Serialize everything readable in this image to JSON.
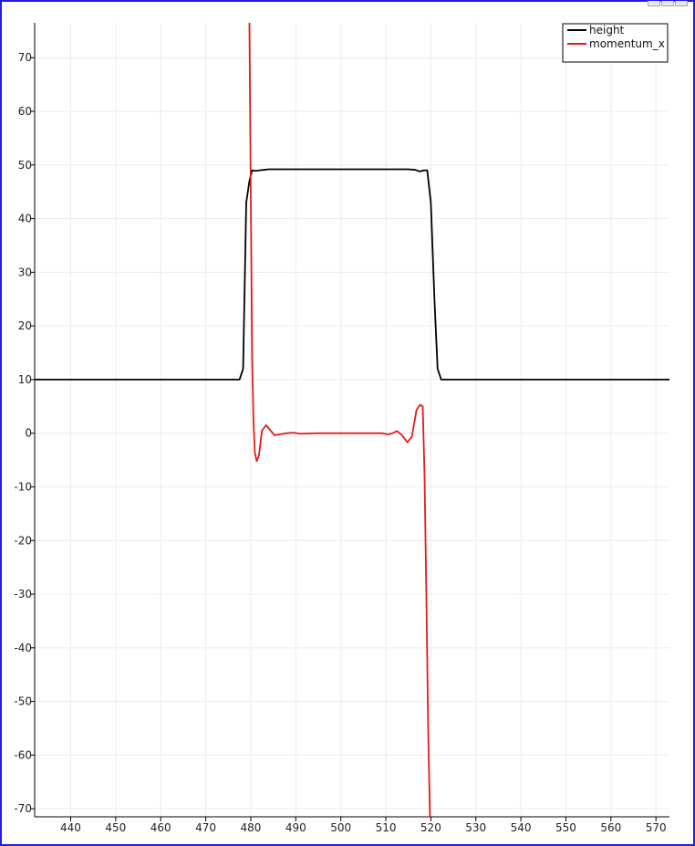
{
  "window": {
    "controls": [
      "minimize",
      "maximize",
      "close"
    ]
  },
  "chart_data": {
    "type": "line",
    "title": "",
    "xlabel": "",
    "ylabel": "",
    "xlim": [
      432,
      573
    ],
    "ylim": [
      -71.5,
      76.5
    ],
    "x_ticks": [
      440,
      450,
      460,
      470,
      480,
      490,
      500,
      510,
      520,
      530,
      540,
      550,
      560,
      570
    ],
    "y_ticks": [
      -70,
      -60,
      -50,
      -40,
      -30,
      -20,
      -10,
      0,
      10,
      20,
      30,
      40,
      50,
      60,
      70
    ],
    "grid": true,
    "legend": {
      "placement": "top-right"
    },
    "series": [
      {
        "name": "height",
        "color": "#000000",
        "x": [
          432,
          470,
          477.5,
          478.3,
          479,
          479.7,
          480.3,
          481,
          482,
          483,
          484,
          490,
          500,
          510,
          515,
          516.5,
          517.5,
          518.5,
          519.2,
          520,
          520.8,
          521.5,
          522.3,
          530,
          573
        ],
        "y": [
          10,
          10,
          10,
          12,
          43,
          47,
          49,
          48.9,
          49,
          49.1,
          49.2,
          49.2,
          49.2,
          49.2,
          49.2,
          49.1,
          48.8,
          49,
          49,
          43,
          25,
          12,
          10,
          10,
          10
        ]
      },
      {
        "name": "momentum_x",
        "color": "#e41a1c",
        "x": [
          479.7,
          480,
          480.3,
          480.6,
          480.9,
          481.3,
          481.8,
          482.5,
          483.4,
          484.4,
          485.3,
          486.5,
          488,
          489.5,
          491,
          495,
          500,
          505,
          509,
          510.5,
          511.5,
          512.5,
          513.5,
          514.8,
          515.8,
          516.8,
          517.6,
          518.2,
          518.6,
          519,
          519.4,
          519.8
        ],
        "y": [
          76.5,
          45,
          14,
          2.5,
          -3.5,
          -5.2,
          -4.2,
          0.5,
          1.5,
          0.5,
          -0.4,
          -0.2,
          0,
          0.1,
          -0.1,
          0,
          0,
          0,
          0,
          -0.2,
          0,
          0.4,
          -0.3,
          -1.7,
          -0.6,
          4.3,
          5.3,
          5.0,
          -8,
          -30,
          -55,
          -71.5
        ]
      }
    ]
  }
}
